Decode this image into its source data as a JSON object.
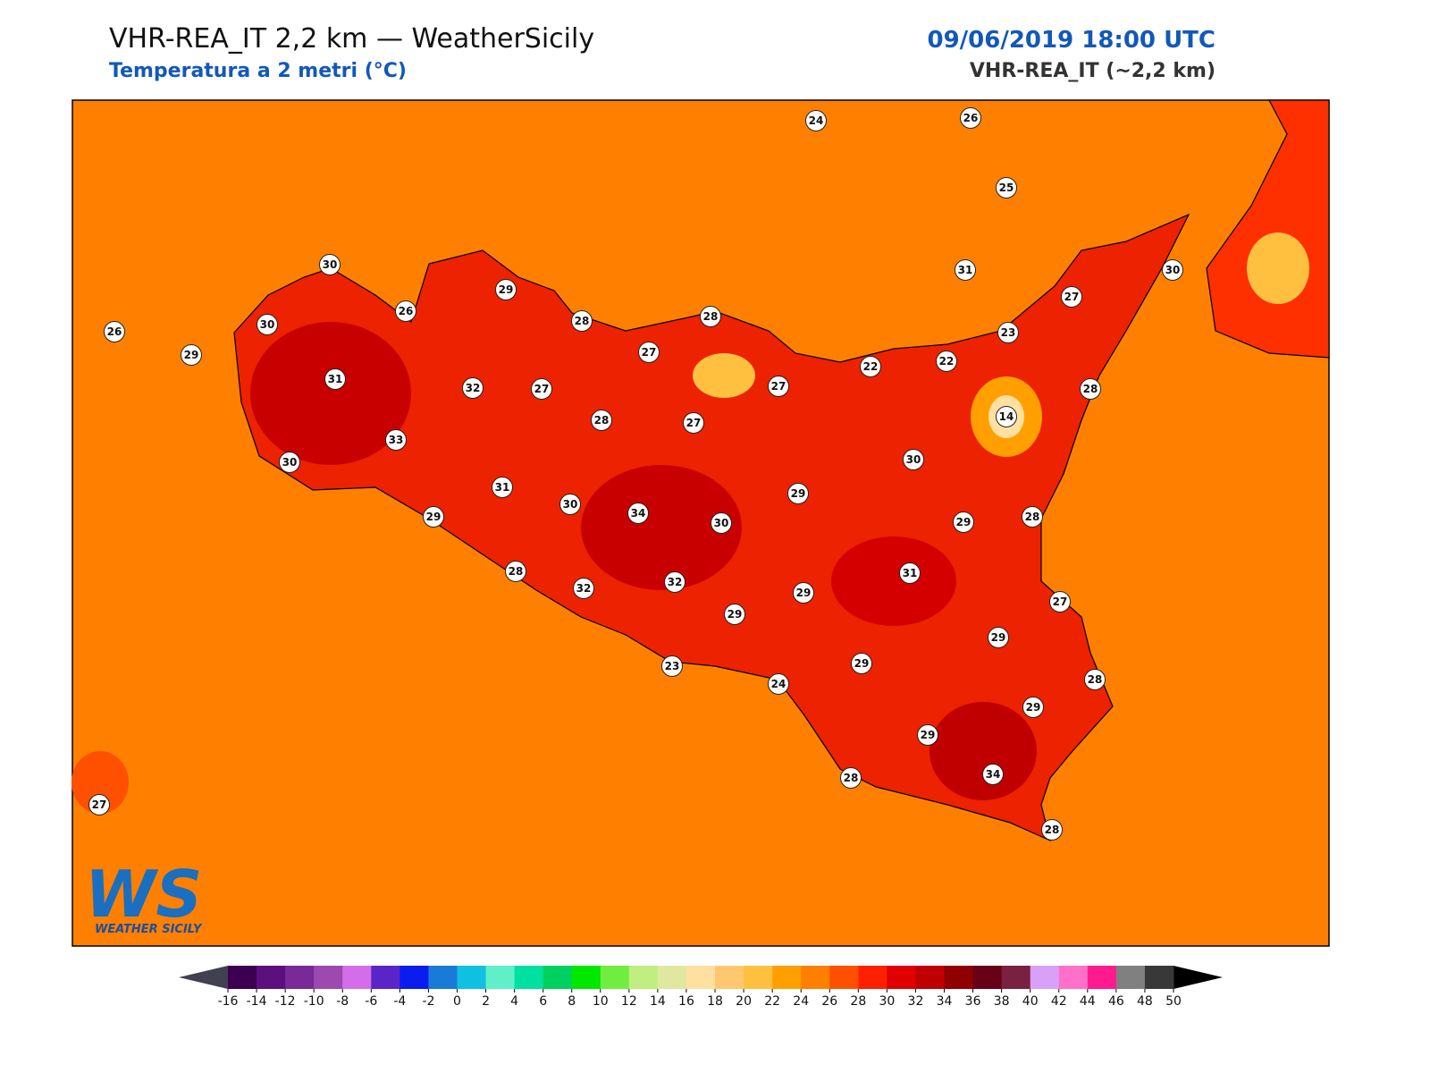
{
  "header": {
    "title": "VHR-REA_IT 2,2 km — WeatherSicily",
    "subtitle": "Temperatura a 2 metri (°C)",
    "datetime": "09/06/2019 18:00 UTC",
    "model": "VHR-REA_IT (~2,2 km)"
  },
  "map": {
    "stations": [
      24,
      26,
      25,
      30,
      29,
      26,
      30,
      26,
      29,
      28,
      28,
      27,
      31,
      30,
      27,
      23,
      22,
      22,
      27,
      28,
      14,
      31,
      32,
      27,
      28,
      27,
      33,
      30,
      30,
      31,
      30,
      34,
      30,
      29,
      29,
      28,
      29,
      28,
      32,
      32,
      31,
      29,
      29,
      27,
      29,
      29,
      23,
      24,
      28,
      29,
      29,
      34,
      28,
      28,
      27
    ]
  },
  "logo": {
    "mark": "WS",
    "name": "WEATHER SICILY"
  },
  "colorbar": {
    "ticks": [
      -16,
      -14,
      -12,
      -10,
      -8,
      -6,
      -4,
      -2,
      0,
      2,
      4,
      6,
      8,
      10,
      12,
      14,
      16,
      18,
      20,
      22,
      24,
      26,
      28,
      30,
      32,
      34,
      36,
      38,
      40,
      42,
      44,
      46,
      48,
      50
    ],
    "colors": [
      "#3d0050",
      "#5c1080",
      "#7a2a98",
      "#9c4ab0",
      "#d46ee8",
      "#5a25c8",
      "#0a1cf0",
      "#1a7ad8",
      "#10c0e0",
      "#60f0c8",
      "#00e0a0",
      "#00d060",
      "#00e800",
      "#70ee40",
      "#c0ee80",
      "#e0e8a0",
      "#ffe0a0",
      "#ffc870",
      "#ffc040",
      "#ffa000",
      "#ff8000",
      "#ff5000",
      "#ff2000",
      "#e00000",
      "#c00000",
      "#900000",
      "#680018",
      "#7a2040",
      "#d8a0f8",
      "#ff70c8",
      "#ff1a90",
      "#808080",
      "#383838"
    ],
    "under_color": "#404050",
    "over_color": "#000000"
  }
}
